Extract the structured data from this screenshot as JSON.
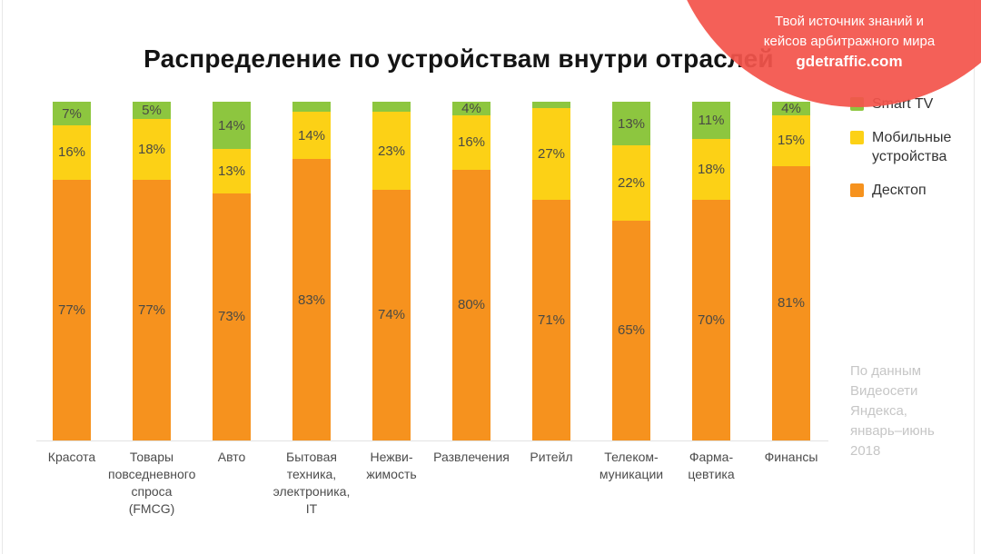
{
  "title": "Распределение по устройствам внутри отраслей",
  "promo": {
    "line1": "Твой источник знаний и",
    "line2": "кейсов арбитражного мира",
    "domain": "gdetraffic.com",
    "circle_color": "#f3544b"
  },
  "legend": [
    {
      "label": "Smart TV",
      "color": "#8dc63f"
    },
    {
      "label": "Мобильные устройства",
      "color": "#fcd116"
    },
    {
      "label": "Десктоп",
      "color": "#f6921e"
    }
  ],
  "footnote": "По данным Видеосети Яндекса, январь–июнь 2018",
  "chart_data": {
    "type": "bar",
    "stacked": true,
    "unit": "%",
    "ylim": [
      0,
      100
    ],
    "grid": false,
    "legend_position": "right",
    "categories": [
      [
        "Красота"
      ],
      [
        "Товары",
        "повседневного",
        "спроса (FMCG)"
      ],
      [
        "Авто"
      ],
      [
        "Бытовая",
        "техника,",
        "электроника,",
        "IT"
      ],
      [
        "Нежви-",
        "жимость"
      ],
      [
        "Развлечения"
      ],
      [
        "Ритейл"
      ],
      [
        "Телеком-",
        "муникации"
      ],
      [
        "Фарма-",
        "цевтика"
      ],
      [
        "Финансы"
      ]
    ],
    "series": [
      {
        "name": "Smart TV",
        "color": "#8dc63f",
        "values": [
          7,
          5,
          14,
          3,
          3,
          4,
          2,
          13,
          11,
          4
        ],
        "labels": [
          "7%",
          "5%",
          "14%",
          "",
          "",
          "4%",
          "",
          "13%",
          "11%",
          "4%"
        ]
      },
      {
        "name": "Мобильные устройства",
        "color": "#fcd116",
        "values": [
          16,
          18,
          13,
          14,
          23,
          16,
          27,
          22,
          18,
          15
        ],
        "labels": [
          "16%",
          "18%",
          "13%",
          "14%",
          "23%",
          "16%",
          "27%",
          "22%",
          "18%",
          "15%"
        ]
      },
      {
        "name": "Десктоп",
        "color": "#f6921e",
        "values": [
          77,
          77,
          73,
          83,
          74,
          80,
          71,
          65,
          70,
          81
        ],
        "labels": [
          "77%",
          "77%",
          "73%",
          "83%",
          "74%",
          "80%",
          "71%",
          "65%",
          "70%",
          "81%"
        ]
      }
    ]
  }
}
